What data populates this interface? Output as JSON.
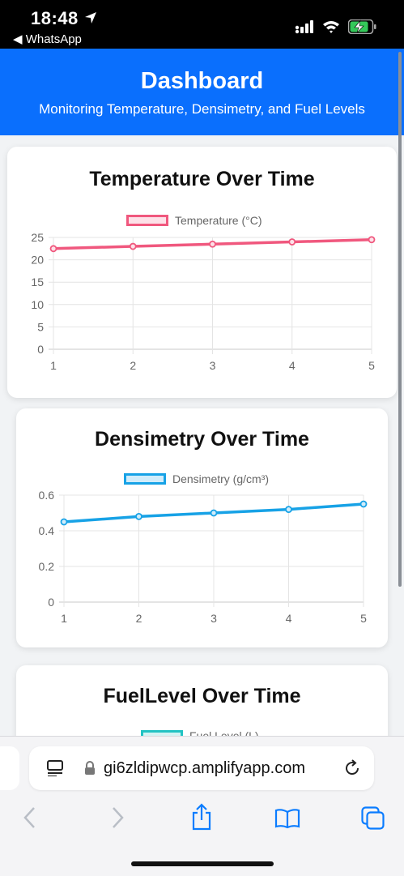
{
  "status": {
    "time": "18:48",
    "back_app": "◀ WhatsApp"
  },
  "header": {
    "title": "Dashboard",
    "subtitle": "Monitoring Temperature, Densimetry, and Fuel Levels"
  },
  "charts": {
    "temperature": {
      "title": "Temperature Over Time",
      "legend": "Temperature (°C)",
      "color": "#f0587e"
    },
    "densimetry": {
      "title": "Densimetry Over Time",
      "legend": "Densimetry (g/cm³)",
      "color": "#17a2e6"
    },
    "fuel": {
      "title": "FuelLevel Over Time",
      "legend": "Fuel Level (L)",
      "color": "#22c3c3"
    }
  },
  "chart_data": [
    {
      "type": "line",
      "title": "Temperature Over Time",
      "x": [
        1,
        2,
        3,
        4,
        5
      ],
      "series": [
        {
          "name": "Temperature (°C)",
          "values": [
            22.5,
            23.0,
            23.5,
            24.0,
            24.5
          ]
        }
      ],
      "ylim": [
        0,
        25
      ],
      "yticks": [
        0,
        5,
        10,
        15,
        20,
        25
      ],
      "grid": true,
      "legend": "top"
    },
    {
      "type": "line",
      "title": "Densimetry Over Time",
      "x": [
        1,
        2,
        3,
        4,
        5
      ],
      "series": [
        {
          "name": "Densimetry (g/cm³)",
          "values": [
            0.45,
            0.48,
            0.5,
            0.52,
            0.55
          ]
        }
      ],
      "ylim": [
        0,
        0.6
      ],
      "yticks": [
        0,
        0.2,
        0.4,
        0.6
      ],
      "grid": true,
      "legend": "top"
    }
  ],
  "browser": {
    "url": "gi6zldipwcp.amplifyapp.com"
  }
}
